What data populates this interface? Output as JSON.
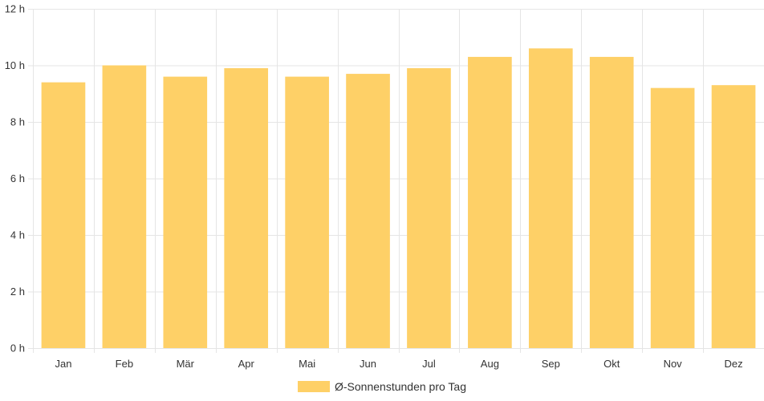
{
  "chart_data": {
    "type": "bar",
    "categories": [
      "Jan",
      "Feb",
      "Mär",
      "Apr",
      "Mai",
      "Jun",
      "Jul",
      "Aug",
      "Sep",
      "Okt",
      "Nov",
      "Dez"
    ],
    "series": [
      {
        "name": "Ø-Sonnenstunden pro Tag",
        "values": [
          9.4,
          10.0,
          9.6,
          9.9,
          9.6,
          9.7,
          9.9,
          10.3,
          10.6,
          10.3,
          9.2,
          9.3
        ]
      }
    ],
    "y_ticks": [
      "0 h",
      "2 h",
      "4 h",
      "6 h",
      "8 h",
      "10 h",
      "12 h"
    ],
    "ylim": [
      0,
      12
    ],
    "grid": true,
    "legend_position": "bottom",
    "colors": {
      "bar": "#fed067",
      "grid": "#e5e5e5",
      "text": "#333333"
    }
  }
}
